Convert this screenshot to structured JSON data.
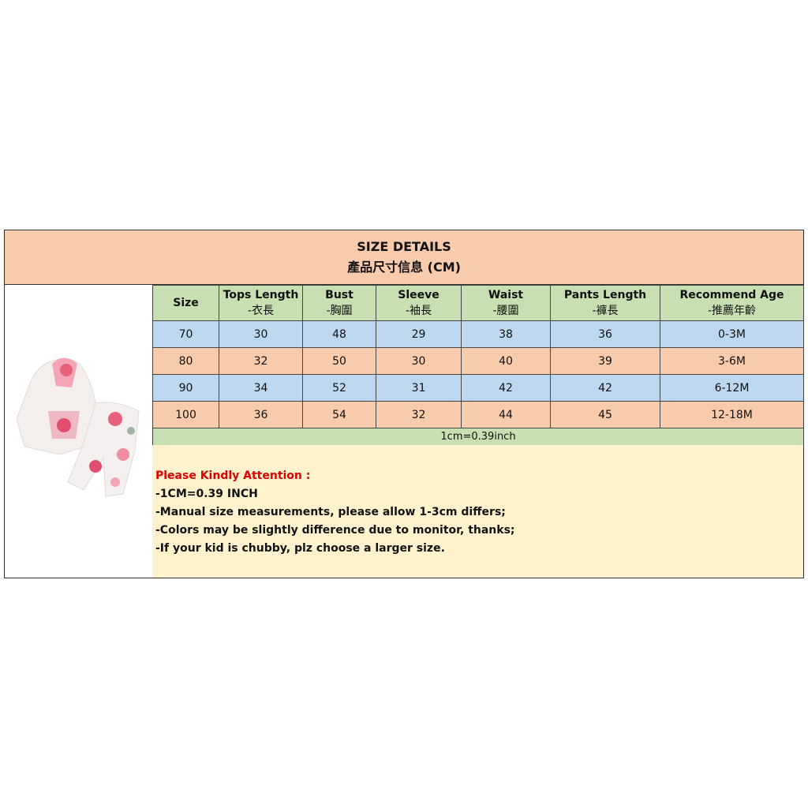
{
  "title": "SIZE DETAILS",
  "subtitle": "產品尺寸信息 (CM)",
  "columns": [
    {
      "en": "Size",
      "cn": ""
    },
    {
      "en": "Tops Length",
      "cn": "-衣長"
    },
    {
      "en": "Bust",
      "cn": "-胸圍"
    },
    {
      "en": "Sleeve",
      "cn": "-袖長"
    },
    {
      "en": "Waist",
      "cn": "-腰圍"
    },
    {
      "en": "Pants Length",
      "cn": "-褲長"
    },
    {
      "en": "Recommend Age",
      "cn": "-推薦年齡"
    }
  ],
  "rows": [
    [
      "70",
      "30",
      "48",
      "29",
      "38",
      "36",
      "0-3M"
    ],
    [
      "80",
      "32",
      "50",
      "30",
      "40",
      "39",
      "3-6M"
    ],
    [
      "90",
      "34",
      "52",
      "31",
      "42",
      "42",
      "6-12M"
    ],
    [
      "100",
      "36",
      "54",
      "32",
      "44",
      "45",
      "12-18M"
    ]
  ],
  "conversion": "1cm=0.39inch",
  "attention": {
    "heading": "Please Kindly Attention :",
    "lines": [
      "-1CM=0.39 INCH",
      "-Manual size measurements, please allow 1-3cm differs;",
      "-Colors may be slightly difference due to monitor, thanks;",
      "-If your kid is chubby, plz choose a larger size."
    ]
  },
  "colors": {
    "title_bg": "#f8cbad",
    "header_bg": "#c6e0b4",
    "row_blue": "#bdd7ee",
    "row_peach": "#f8cbad",
    "note_bg": "#fff2cc",
    "attention_red": "#e00000"
  }
}
